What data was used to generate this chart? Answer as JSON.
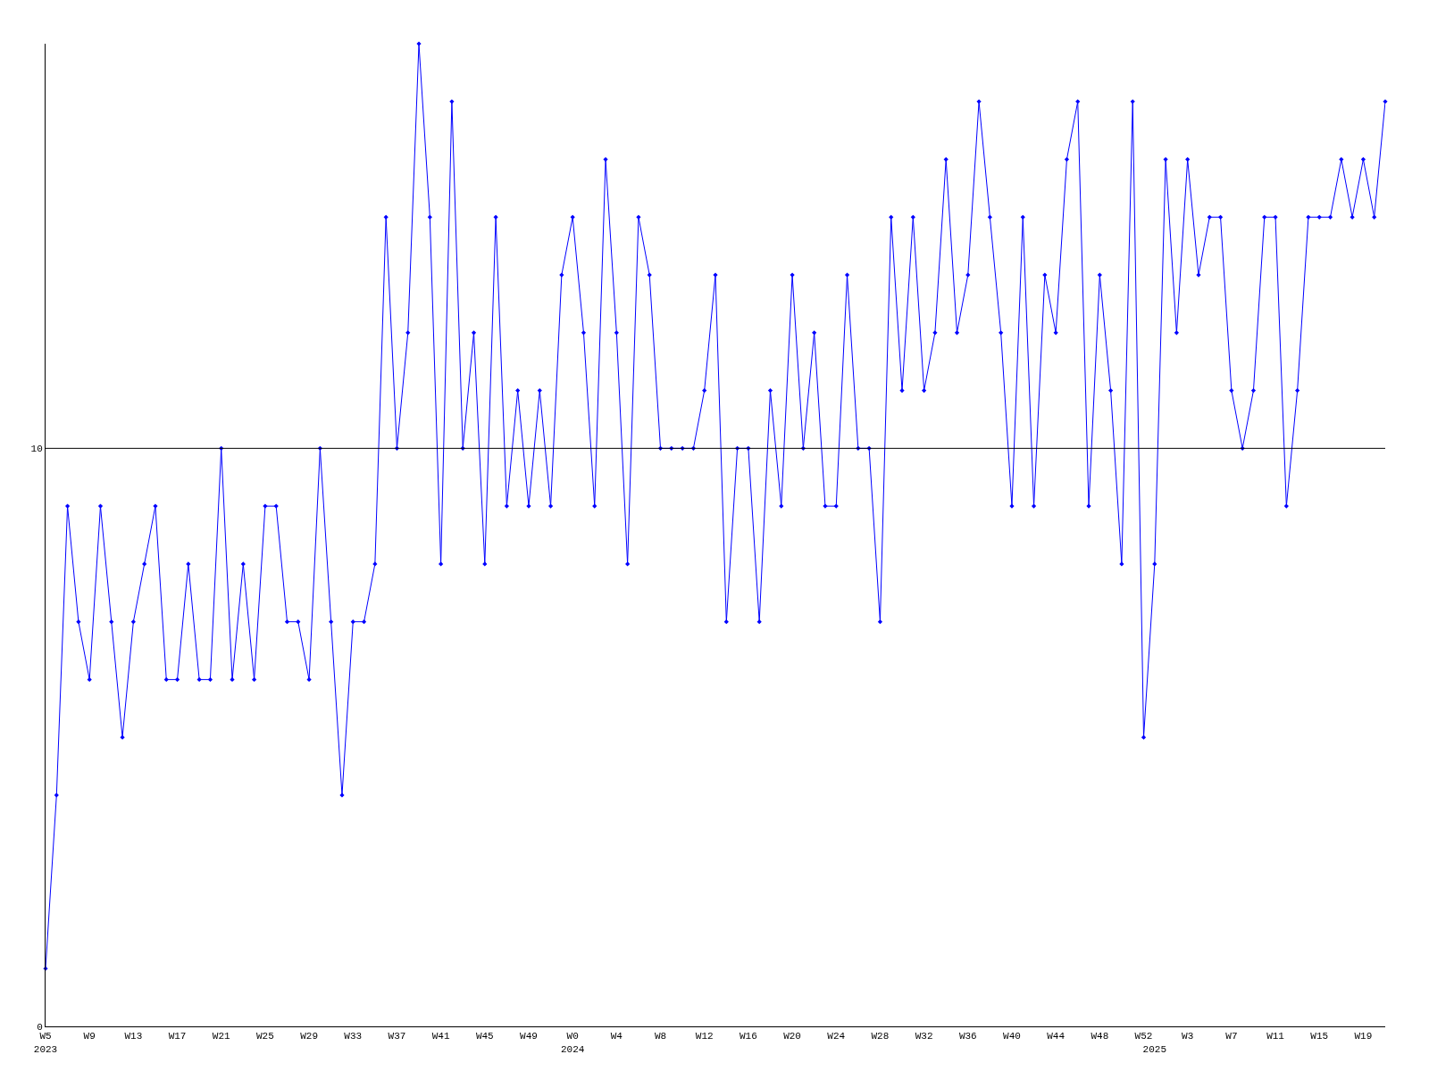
{
  "chart_data": {
    "type": "line",
    "categories": [
      "W5\n2023",
      null,
      null,
      null,
      "W9",
      null,
      null,
      null,
      "W13",
      null,
      null,
      null,
      "W17",
      null,
      null,
      null,
      "W21",
      null,
      null,
      null,
      "W25",
      null,
      null,
      null,
      "W29",
      null,
      null,
      null,
      "W33",
      null,
      null,
      null,
      "W37",
      null,
      null,
      null,
      "W41",
      null,
      null,
      null,
      "W45",
      null,
      null,
      null,
      "W49",
      null,
      null,
      null,
      "W0\n2024",
      null,
      null,
      null,
      "W4",
      null,
      null,
      null,
      "W8",
      null,
      null,
      null,
      "W12",
      null,
      null,
      null,
      "W16",
      null,
      null,
      null,
      "W20",
      null,
      null,
      null,
      "W24",
      null,
      null,
      null,
      "W28",
      null,
      null,
      null,
      "W32",
      null,
      null,
      null,
      "W36",
      null,
      null,
      null,
      "W40",
      null,
      null,
      null,
      "W44",
      null,
      null,
      null,
      "W48",
      null,
      null,
      null,
      "W52",
      "\n2025",
      null,
      null,
      "W3",
      null,
      null,
      null,
      "W7",
      null,
      null,
      null,
      "W11",
      null,
      null,
      null,
      "W15",
      null,
      null,
      null,
      "W19",
      null,
      null
    ],
    "series": [
      {
        "color": "#0000ff",
        "values": [
          1,
          4,
          9,
          7,
          6,
          9,
          7,
          5,
          7,
          8,
          9,
          6,
          6,
          8,
          6,
          6,
          10,
          6,
          8,
          6,
          9,
          9,
          7,
          7,
          6,
          10,
          7,
          4,
          7,
          7,
          8,
          14,
          10,
          12,
          17,
          14,
          8,
          16,
          10,
          12,
          8,
          14,
          9,
          11,
          9,
          11,
          9,
          13,
          14,
          12,
          9,
          15,
          12,
          8,
          14,
          13,
          10,
          10,
          10,
          10,
          11,
          13,
          7,
          10,
          10,
          7,
          11,
          9,
          13,
          10,
          12,
          9,
          9,
          13,
          10,
          10,
          7,
          14,
          11,
          14,
          11,
          12,
          15,
          12,
          13,
          16,
          14,
          12,
          9,
          14,
          9,
          13,
          12,
          15,
          16,
          9,
          13,
          11,
          8,
          16,
          5,
          8,
          15,
          12,
          15,
          13,
          14,
          14,
          11,
          10,
          11,
          14,
          14,
          9,
          11,
          14,
          14,
          14,
          15,
          14,
          15,
          14,
          16
        ]
      }
    ],
    "ylim": [
      0,
      17
    ],
    "yticks": [
      0,
      10
    ],
    "grid": false,
    "marker": "diamond",
    "line_style": "solid",
    "ref_lines": [
      {
        "axis": "y",
        "value": 10,
        "color": "#000000"
      }
    ]
  }
}
